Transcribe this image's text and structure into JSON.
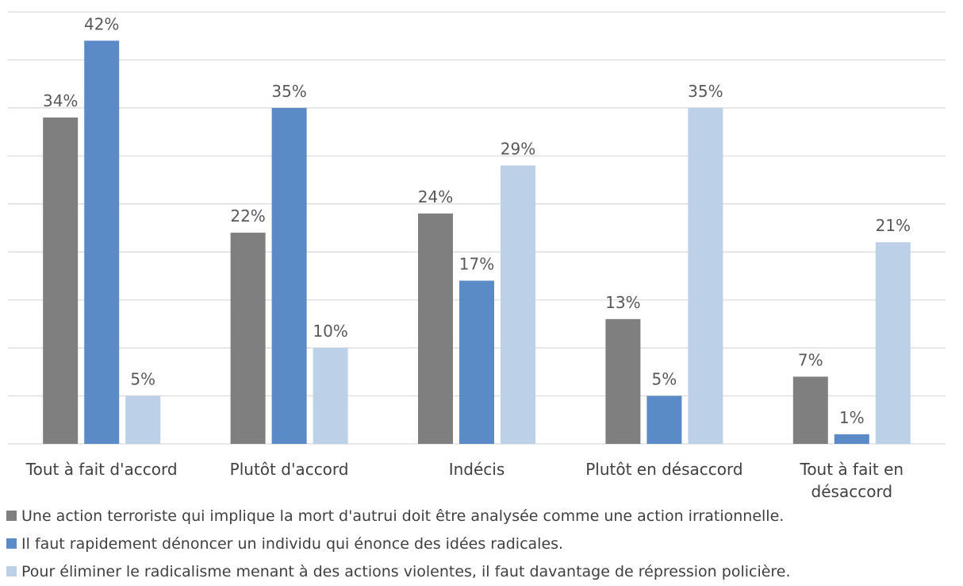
{
  "chart_data": {
    "type": "bar",
    "categories": [
      "Tout à fait d'accord",
      "Plutôt d'accord",
      "Indécis",
      "Plutôt en désaccord",
      "Tout à fait en désaccord"
    ],
    "category_lines": [
      [
        "Tout à fait d'accord"
      ],
      [
        "Plutôt d'accord"
      ],
      [
        "Indécis"
      ],
      [
        "Plutôt en désaccord"
      ],
      [
        "Tout à fait en",
        "désaccord"
      ]
    ],
    "series": [
      {
        "name": "Une action terroriste qui implique la mort d'autrui doit être analysée comme une action irrationnelle.",
        "color": "#7f7f7f",
        "values": [
          34,
          22,
          24,
          13,
          7
        ],
        "labels": [
          "34%",
          "22%",
          "24%",
          "13%",
          "7%"
        ]
      },
      {
        "name": "Il faut rapidement dénoncer un individu qui énonce des idées radicales.",
        "color": "#5b8bc6",
        "values": [
          42,
          35,
          17,
          5,
          1
        ],
        "labels": [
          "42%",
          "35%",
          "17%",
          "5%",
          "1%"
        ]
      },
      {
        "name": "Pour éliminer le radicalisme menant à des actions violentes, il faut davantage de répression policière.",
        "color": "#bcd0e8",
        "values": [
          5,
          10,
          29,
          35,
          21
        ],
        "labels": [
          "5%",
          "10%",
          "29%",
          "35%",
          "21%"
        ]
      }
    ],
    "ylim": [
      0,
      45
    ],
    "gridlines": true,
    "legend_position": "bottom",
    "gridline_color": "#d9d9d9"
  }
}
